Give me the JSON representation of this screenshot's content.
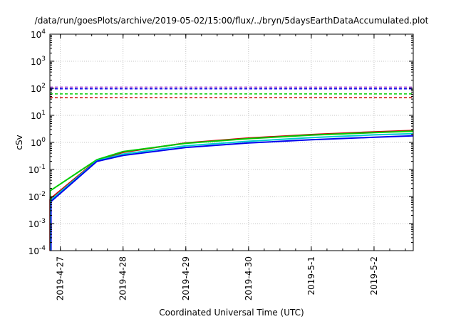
{
  "chart_data": {
    "type": "line",
    "title": "/data/run/goesPlots/archive/2019-05-02/15:00/flux/../bryn/5daysEarthDataAccumulated.plot",
    "xlabel": "Coordinated Universal Time (UTC)",
    "ylabel": "cSv",
    "y_scale": "log",
    "ylim": [
      0.0001,
      10000
    ],
    "y_ticks": [
      {
        "base": "10",
        "exp": "-4",
        "value": 0.0001
      },
      {
        "base": "10",
        "exp": "-3",
        "value": 0.001
      },
      {
        "base": "10",
        "exp": "-2",
        "value": 0.01
      },
      {
        "base": "10",
        "exp": "-1",
        "value": 0.1
      },
      {
        "base": "10",
        "exp": "0",
        "value": 1
      },
      {
        "base": "10",
        "exp": "1",
        "value": 10
      },
      {
        "base": "10",
        "exp": "2",
        "value": 100
      },
      {
        "base": "10",
        "exp": "3",
        "value": 1000
      },
      {
        "base": "10",
        "exp": "4",
        "value": 10000
      }
    ],
    "xlim": [
      "2019-04-26 20:00",
      "2019-05-02 15:00"
    ],
    "x_ticks": [
      "2019-4-27",
      "2019-4-28",
      "2019-4-29",
      "2019-4-30",
      "2019-5-1",
      "2019-5-2"
    ],
    "grid": true,
    "series": [
      {
        "color": "#cc0000",
        "style": "solid",
        "x": [
          "2019-04-26 20:00",
          "2019-04-27 14:00",
          "2019-04-28 00:00",
          "2019-04-29 00:00",
          "2019-04-30 00:00",
          "2019-05-01 00:00",
          "2019-05-02 00:00",
          "2019-05-02 15:00"
        ],
        "values": [
          0.008,
          0.22,
          0.43,
          0.95,
          1.45,
          1.95,
          2.45,
          2.75
        ]
      },
      {
        "color": "#00cc00",
        "style": "solid",
        "x": [
          "2019-04-26 20:00",
          "2019-04-27 14:00",
          "2019-04-28 00:00",
          "2019-04-29 00:00",
          "2019-04-30 00:00",
          "2019-05-01 00:00",
          "2019-05-02 00:00",
          "2019-05-02 15:00"
        ],
        "values": [
          0.016,
          0.23,
          0.46,
          0.93,
          1.38,
          1.85,
          2.3,
          2.6
        ]
      },
      {
        "color": "#00cccc",
        "style": "solid",
        "x": [
          "2019-04-26 20:00",
          "2019-04-27 14:00",
          "2019-04-28 00:00",
          "2019-04-29 00:00",
          "2019-04-30 00:00",
          "2019-05-01 00:00",
          "2019-05-02 00:00",
          "2019-05-02 15:00"
        ],
        "values": [
          0.007,
          0.21,
          0.37,
          0.75,
          1.1,
          1.5,
          1.9,
          2.1
        ]
      },
      {
        "color": "#0000ee",
        "style": "solid",
        "x": [
          "2019-04-26 20:00",
          "2019-04-27 14:00",
          "2019-04-28 00:00",
          "2019-04-29 00:00",
          "2019-04-30 00:00",
          "2019-05-01 00:00",
          "2019-05-02 00:00",
          "2019-05-02 15:00"
        ],
        "values": [
          0.006,
          0.2,
          0.33,
          0.65,
          0.95,
          1.25,
          1.55,
          1.75
        ]
      },
      {
        "color": "#9933cc",
        "style": "dashed",
        "x": [
          "2019-04-26 20:00",
          "2019-05-02 15:00"
        ],
        "values": [
          110,
          110
        ]
      },
      {
        "color": "#0000ee",
        "style": "dashed",
        "x": [
          "2019-04-26 20:00",
          "2019-05-02 15:00"
        ],
        "values": [
          95,
          95
        ]
      },
      {
        "color": "#00cc00",
        "style": "dashed",
        "x": [
          "2019-04-26 20:00",
          "2019-05-02 15:00"
        ],
        "values": [
          62,
          62
        ]
      },
      {
        "color": "#cc0000",
        "style": "dashed",
        "x": [
          "2019-04-26 20:00",
          "2019-05-02 15:00"
        ],
        "values": [
          45,
          45
        ]
      }
    ]
  }
}
